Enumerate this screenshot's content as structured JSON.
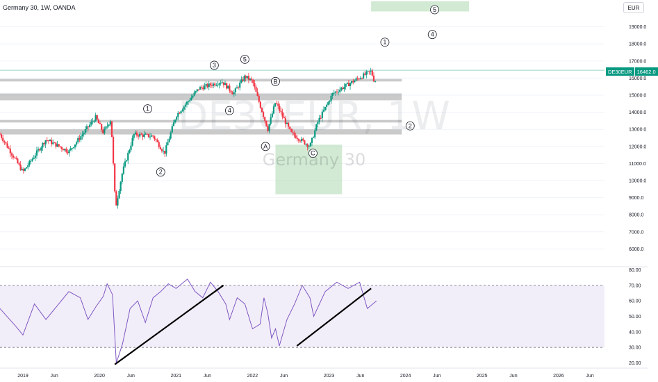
{
  "header": {
    "title": "Germany 30, 1W, OANDA",
    "currency": "EUR"
  },
  "watermark": {
    "symbol": "DE30EUR, 1W",
    "name": "Germany 30"
  },
  "price_tag": {
    "symbol": "DE30EUR",
    "price": "16462.0"
  },
  "colors": {
    "up": "#089981",
    "down": "#f23645",
    "rsi_line": "#7e57c2",
    "rsi_band": "#7e57c2",
    "zone": "#a5d6a7",
    "sr_band": "#9e9e9e",
    "trend": "#000000"
  },
  "chart_data": [
    {
      "type": "candlestick",
      "title": "Germany 30, 1W, OANDA",
      "price_axis_labels": [
        "19000.0",
        "18000.0",
        "17000.0",
        "16000.0",
        "15000.0",
        "14000.0",
        "13000.0",
        "12000.0",
        "11000.0",
        "10000.0",
        "9000.0",
        "8000.0",
        "7000.0",
        "6000.0"
      ],
      "ylim": [
        5000,
        20000
      ],
      "x_axis_labels": [
        "2019",
        "Jun",
        "2020",
        "Jun",
        "2021",
        "Jun",
        "2022",
        "Jun",
        "2023",
        "Jun",
        "2024",
        "Jun",
        "2025",
        "Jun",
        "2026",
        "Jun"
      ],
      "xlim": [
        2018.7,
        2026.6
      ],
      "last_price": 16462.0,
      "key_points": [
        [
          2018.7,
          12700
        ],
        [
          2019.0,
          10500
        ],
        [
          2019.3,
          12400
        ],
        [
          2019.6,
          11700
        ],
        [
          2019.95,
          13700
        ],
        [
          2020.05,
          12800
        ],
        [
          2020.15,
          13600
        ],
        [
          2020.21,
          8400
        ],
        [
          2020.3,
          10500
        ],
        [
          2020.45,
          12700
        ],
        [
          2020.7,
          12600
        ],
        [
          2020.85,
          11600
        ],
        [
          2021.0,
          13800
        ],
        [
          2021.3,
          15400
        ],
        [
          2021.6,
          15800
        ],
        [
          2021.75,
          15100
        ],
        [
          2021.9,
          16100
        ],
        [
          2022.0,
          15800
        ],
        [
          2022.2,
          13000
        ],
        [
          2022.3,
          14600
        ],
        [
          2022.5,
          12800
        ],
        [
          2022.75,
          12000
        ],
        [
          2022.85,
          13400
        ],
        [
          2023.05,
          15100
        ],
        [
          2023.35,
          15900
        ],
        [
          2023.55,
          16400
        ],
        [
          2023.6,
          15700
        ],
        [
          2023.62,
          16500
        ]
      ],
      "wave_labels": [
        {
          "text": "1",
          "x": 2020.63,
          "y": 14200
        },
        {
          "text": "2",
          "x": 2020.8,
          "y": 10500
        },
        {
          "text": "3",
          "x": 2021.5,
          "y": 16750
        },
        {
          "text": "4",
          "x": 2021.7,
          "y": 14100
        },
        {
          "text": "5",
          "x": 2021.9,
          "y": 17100
        },
        {
          "text": "A",
          "x": 2022.17,
          "y": 12000
        },
        {
          "text": "B",
          "x": 2022.3,
          "y": 15800
        },
        {
          "text": "C",
          "x": 2022.79,
          "y": 11600
        },
        {
          "text": "1",
          "x": 2023.73,
          "y": 18100
        },
        {
          "text": "2",
          "x": 2024.06,
          "y": 13200
        },
        {
          "text": "4",
          "x": 2024.35,
          "y": 18550
        },
        {
          "text": "5",
          "x": 2024.38,
          "y": 20000
        }
      ],
      "support_resistance_bands": [
        [
          15800,
          15950
        ],
        [
          14700,
          15100
        ],
        [
          13400,
          13550
        ],
        [
          12700,
          13000
        ]
      ],
      "target_zones": [
        [
          2022.3,
          2023.17,
          9200,
          12100
        ],
        [
          2023.55,
          2024.83,
          19900,
          20500
        ]
      ]
    },
    {
      "type": "line",
      "series": [
        {
          "name": "RSI",
          "values": [
            55,
            44,
            38,
            58,
            48,
            57,
            66,
            62,
            48,
            56,
            63,
            71,
            64,
            20,
            32,
            55,
            60,
            46,
            62,
            66,
            71,
            68,
            74,
            66,
            62,
            72,
            66,
            58,
            48,
            62,
            58,
            42,
            45,
            62,
            52,
            36,
            42,
            31,
            48,
            58,
            70,
            62,
            50,
            66,
            72,
            68,
            72,
            55,
            60
          ]
        }
      ],
      "x": [
        2018.7,
        2018.9,
        2019.0,
        2019.15,
        2019.3,
        2019.45,
        2019.6,
        2019.75,
        2019.85,
        2019.95,
        2020.05,
        2020.1,
        2020.17,
        2020.22,
        2020.3,
        2020.4,
        2020.5,
        2020.6,
        2020.7,
        2020.8,
        2020.9,
        2021.0,
        2021.15,
        2021.25,
        2021.35,
        2021.45,
        2021.55,
        2021.65,
        2021.7,
        2021.8,
        2021.9,
        2022.0,
        2022.1,
        2022.15,
        2022.2,
        2022.25,
        2022.3,
        2022.35,
        2022.45,
        2022.55,
        2022.65,
        2022.75,
        2022.8,
        2022.95,
        2023.1,
        2023.25,
        2023.4,
        2023.5,
        2023.62
      ],
      "ylim": [
        18,
        82
      ],
      "y_axis_labels": [
        "80.00",
        "70.00",
        "60.00",
        "50.00",
        "40.00",
        "30.00",
        "20.00"
      ],
      "overbought": 70,
      "oversold": 30,
      "trendlines": [
        [
          2020.2,
          19,
          2021.62,
          70
        ],
        [
          2022.58,
          31,
          2023.55,
          68
        ]
      ]
    }
  ]
}
